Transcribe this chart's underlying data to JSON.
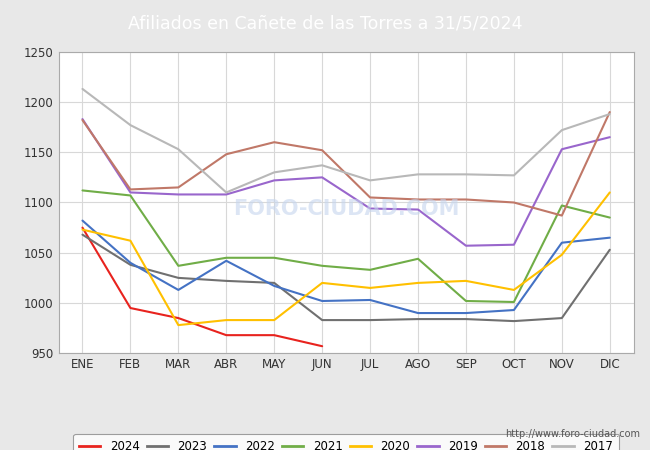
{
  "title": "Afiliados en Cañete de las Torres a 31/5/2024",
  "title_bg_color": "#5b8dd9",
  "title_text_color": "white",
  "ylim": [
    950,
    1250
  ],
  "months": [
    "ENE",
    "FEB",
    "MAR",
    "ABR",
    "MAY",
    "JUN",
    "JUL",
    "AGO",
    "SEP",
    "OCT",
    "NOV",
    "DIC"
  ],
  "watermark": "http://www.foro-ciudad.com",
  "series": {
    "2024": {
      "color": "#e8231e",
      "data": [
        1075,
        995,
        985,
        968,
        968,
        957,
        null,
        null,
        null,
        null,
        null,
        null
      ]
    },
    "2023": {
      "color": "#707070",
      "data": [
        1068,
        1038,
        1025,
        1022,
        1020,
        983,
        983,
        984,
        984,
        982,
        985,
        1053
      ]
    },
    "2022": {
      "color": "#4472c4",
      "data": [
        1082,
        1040,
        1013,
        1042,
        1017,
        1002,
        1003,
        990,
        990,
        993,
        1060,
        1065
      ]
    },
    "2021": {
      "color": "#70ad47",
      "data": [
        1112,
        1107,
        1037,
        1045,
        1045,
        1037,
        1033,
        1044,
        1002,
        1001,
        1097,
        1085
      ]
    },
    "2020": {
      "color": "#ffc000",
      "data": [
        1073,
        1062,
        978,
        983,
        983,
        1020,
        1015,
        1020,
        1022,
        1013,
        1048,
        1110
      ]
    },
    "2019": {
      "color": "#9966cc",
      "data": [
        1183,
        1110,
        1108,
        1108,
        1122,
        1125,
        1094,
        1093,
        1057,
        1058,
        1153,
        1165
      ]
    },
    "2018": {
      "color": "#c07868",
      "data": [
        1182,
        1113,
        1115,
        1148,
        1160,
        1152,
        1105,
        1103,
        1103,
        1100,
        1087,
        1190
      ]
    },
    "2017": {
      "color": "#b8b8b8",
      "data": [
        1213,
        1177,
        1153,
        1110,
        1130,
        1137,
        1122,
        1128,
        1128,
        1127,
        1172,
        1188
      ]
    }
  },
  "legend_order": [
    "2024",
    "2023",
    "2022",
    "2021",
    "2020",
    "2019",
    "2018",
    "2017"
  ],
  "outer_bg_color": "#e8e8e8",
  "plot_bg_color": "#ffffff",
  "grid_color": "#d8d8d8",
  "font_color": "#333333"
}
